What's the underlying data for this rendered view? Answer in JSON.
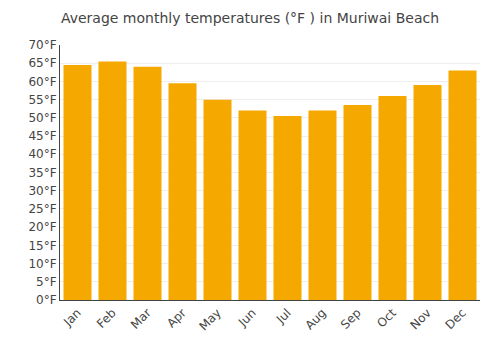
{
  "chart_data": {
    "type": "bar",
    "title": "Average monthly temperatures (°F ) in Muriwai Beach",
    "categories": [
      "Jan",
      "Feb",
      "Mar",
      "Apr",
      "May",
      "Jun",
      "Jul",
      "Aug",
      "Sep",
      "Oct",
      "Nov",
      "Dec"
    ],
    "values": [
      64.5,
      65.5,
      64.0,
      59.5,
      55.0,
      52.0,
      50.5,
      52.0,
      53.5,
      56.0,
      59.0,
      63.0
    ],
    "color": "#F5A800",
    "ylim": [
      0,
      70
    ],
    "yticks": [
      {
        "value": 0,
        "label": "0°F"
      },
      {
        "value": 5,
        "label": "5°F"
      },
      {
        "value": 10,
        "label": "10°F"
      },
      {
        "value": 15,
        "label": "15°F"
      },
      {
        "value": 20,
        "label": "20°F"
      },
      {
        "value": 25,
        "label": "25°F"
      },
      {
        "value": 30,
        "label": "30°F"
      },
      {
        "value": 35,
        "label": "35°F"
      },
      {
        "value": 40,
        "label": "40°F"
      },
      {
        "value": 45,
        "label": "45°F"
      },
      {
        "value": 50,
        "label": "50°F"
      },
      {
        "value": 55,
        "label": "55°F"
      },
      {
        "value": 60,
        "label": "60°F"
      },
      {
        "value": 65,
        "label": "65°F"
      },
      {
        "value": 70,
        "label": "70°F"
      }
    ],
    "grid": true
  }
}
